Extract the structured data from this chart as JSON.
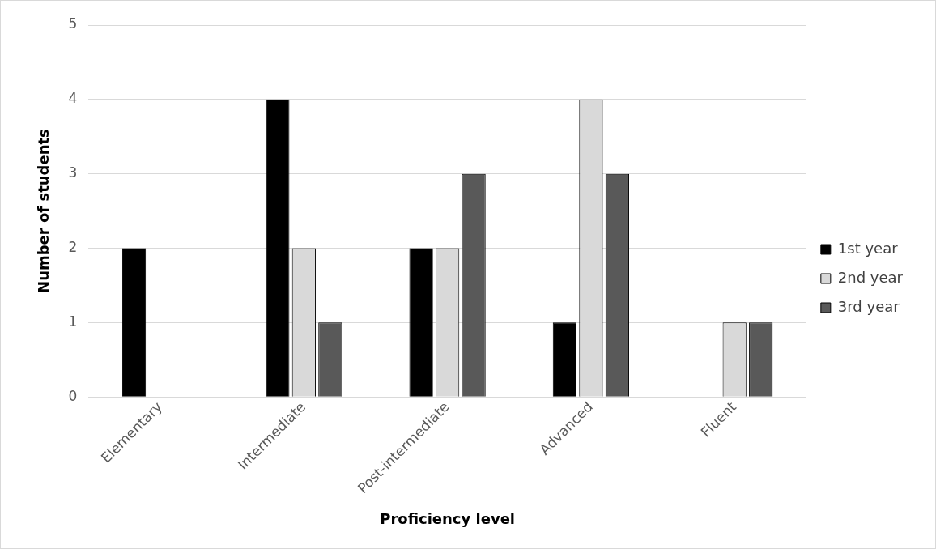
{
  "chart_data": {
    "type": "bar",
    "xlabel": "Proficiency level",
    "ylabel": "Number of students",
    "categories": [
      "Elementary",
      "Intermediate",
      "Post-intermediate",
      "Advanced",
      "Fluent"
    ],
    "series": [
      {
        "name": "1st year",
        "color": "#000000",
        "values": [
          2,
          4,
          2,
          1,
          0
        ]
      },
      {
        "name": "2nd year",
        "color": "#d9d9d9",
        "values": [
          0,
          2,
          2,
          4,
          1
        ]
      },
      {
        "name": "3rd year",
        "color": "#595959",
        "values": [
          0,
          1,
          3,
          3,
          1
        ]
      }
    ],
    "ylim": [
      0,
      5
    ],
    "yticks": [
      0,
      1,
      2,
      3,
      4,
      5
    ],
    "grid": "y",
    "legend": "right"
  }
}
